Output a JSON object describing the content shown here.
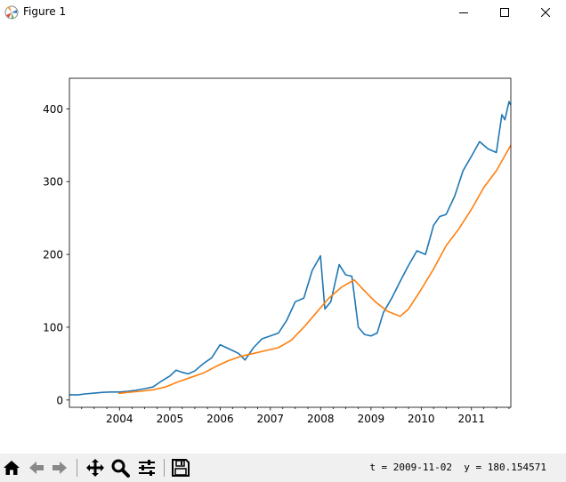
{
  "window": {
    "title": "Figure 1"
  },
  "toolbar": {
    "buttons": [
      {
        "name": "home-icon"
      },
      {
        "name": "back-icon"
      },
      {
        "name": "forward-icon"
      },
      {
        "name": "pan-icon"
      },
      {
        "name": "zoom-icon"
      },
      {
        "name": "configure-subplots-icon"
      },
      {
        "name": "save-icon"
      }
    ],
    "coordinates": "t = 2009-11-02  y = 180.154571"
  },
  "chart_data": {
    "type": "line",
    "title": "",
    "xlabel": "",
    "ylabel": "",
    "xlim": [
      "2003-01-02",
      "2011-10-14"
    ],
    "ylim": [
      -10,
      442
    ],
    "x_ticks": [
      "2004",
      "2005",
      "2006",
      "2007",
      "2008",
      "2009",
      "2010",
      "2011"
    ],
    "y_ticks": [
      0,
      100,
      200,
      300,
      400
    ],
    "grid": false,
    "series": [
      {
        "color": "#1f77b4",
        "points": [
          [
            "2003-01-02",
            7.2
          ],
          [
            "2003-03-01",
            7.0
          ],
          [
            "2003-05-01",
            8.5
          ],
          [
            "2003-07-01",
            9.5
          ],
          [
            "2003-09-01",
            10.5
          ],
          [
            "2003-11-01",
            11.0
          ],
          [
            "2004-01-01",
            11.0
          ],
          [
            "2004-03-01",
            12.0
          ],
          [
            "2004-05-01",
            13.5
          ],
          [
            "2004-07-01",
            15.5
          ],
          [
            "2004-09-01",
            18.0
          ],
          [
            "2004-11-01",
            26.0
          ],
          [
            "2005-01-01",
            33.0
          ],
          [
            "2005-02-15",
            41.0
          ],
          [
            "2005-04-01",
            38.0
          ],
          [
            "2005-05-15",
            36.0
          ],
          [
            "2005-07-01",
            40.0
          ],
          [
            "2005-09-01",
            50.0
          ],
          [
            "2005-11-01",
            58.0
          ],
          [
            "2006-01-01",
            76.0
          ],
          [
            "2006-02-15",
            72.0
          ],
          [
            "2006-04-01",
            68.0
          ],
          [
            "2006-05-15",
            64.0
          ],
          [
            "2006-07-01",
            55.0
          ],
          [
            "2006-09-01",
            72.0
          ],
          [
            "2006-11-01",
            84.0
          ],
          [
            "2007-01-01",
            88.0
          ],
          [
            "2007-03-01",
            92.0
          ],
          [
            "2007-05-01",
            110.0
          ],
          [
            "2007-07-01",
            135.0
          ],
          [
            "2007-09-01",
            140.0
          ],
          [
            "2007-11-01",
            178.0
          ],
          [
            "2007-12-31",
            198.0
          ],
          [
            "2008-02-01",
            125.0
          ],
          [
            "2008-03-15",
            135.0
          ],
          [
            "2008-05-15",
            186.0
          ],
          [
            "2008-07-01",
            172.0
          ],
          [
            "2008-08-15",
            170.0
          ],
          [
            "2008-10-01",
            100.0
          ],
          [
            "2008-11-15",
            90.0
          ],
          [
            "2009-01-01",
            88.0
          ],
          [
            "2009-02-15",
            92.0
          ],
          [
            "2009-04-01",
            120.0
          ],
          [
            "2009-06-01",
            140.0
          ],
          [
            "2009-08-01",
            163.0
          ],
          [
            "2009-10-01",
            185.0
          ],
          [
            "2009-12-01",
            205.0
          ],
          [
            "2010-02-01",
            200.0
          ],
          [
            "2010-04-01",
            240.0
          ],
          [
            "2010-05-15",
            252.0
          ],
          [
            "2010-07-01",
            255.0
          ],
          [
            "2010-09-01",
            280.0
          ],
          [
            "2010-11-01",
            315.0
          ],
          [
            "2011-01-01",
            335.0
          ],
          [
            "2011-03-01",
            355.0
          ],
          [
            "2011-05-01",
            345.0
          ],
          [
            "2011-07-01",
            340.0
          ],
          [
            "2011-08-10",
            392.0
          ],
          [
            "2011-09-01",
            385.0
          ],
          [
            "2011-10-01",
            410.0
          ],
          [
            "2011-10-14",
            405.0
          ]
        ]
      },
      {
        "color": "#ff7f0e",
        "points": [
          [
            "2003-12-24",
            9.0
          ],
          [
            "2004-03-01",
            10.5
          ],
          [
            "2004-06-01",
            12.0
          ],
          [
            "2004-09-01",
            14.0
          ],
          [
            "2004-12-01",
            18.0
          ],
          [
            "2005-03-01",
            25.0
          ],
          [
            "2005-06-01",
            31.0
          ],
          [
            "2005-09-01",
            37.0
          ],
          [
            "2005-12-01",
            46.0
          ],
          [
            "2006-03-01",
            54.0
          ],
          [
            "2006-06-01",
            60.0
          ],
          [
            "2006-09-01",
            64.0
          ],
          [
            "2006-12-01",
            68.0
          ],
          [
            "2007-03-01",
            72.0
          ],
          [
            "2007-06-01",
            82.0
          ],
          [
            "2007-09-01",
            100.0
          ],
          [
            "2007-12-01",
            120.0
          ],
          [
            "2008-03-01",
            140.0
          ],
          [
            "2008-06-01",
            155.0
          ],
          [
            "2008-09-01",
            165.0
          ],
          [
            "2008-11-15",
            150.0
          ],
          [
            "2009-02-01",
            135.0
          ],
          [
            "2009-05-01",
            122.0
          ],
          [
            "2009-08-01",
            115.0
          ],
          [
            "2009-10-01",
            125.0
          ],
          [
            "2010-01-01",
            152.0
          ],
          [
            "2010-04-01",
            180.0
          ],
          [
            "2010-07-01",
            212.0
          ],
          [
            "2010-10-01",
            235.0
          ],
          [
            "2011-01-01",
            262.0
          ],
          [
            "2011-04-01",
            292.0
          ],
          [
            "2011-07-01",
            315.0
          ],
          [
            "2011-10-14",
            350.0
          ]
        ]
      }
    ]
  }
}
